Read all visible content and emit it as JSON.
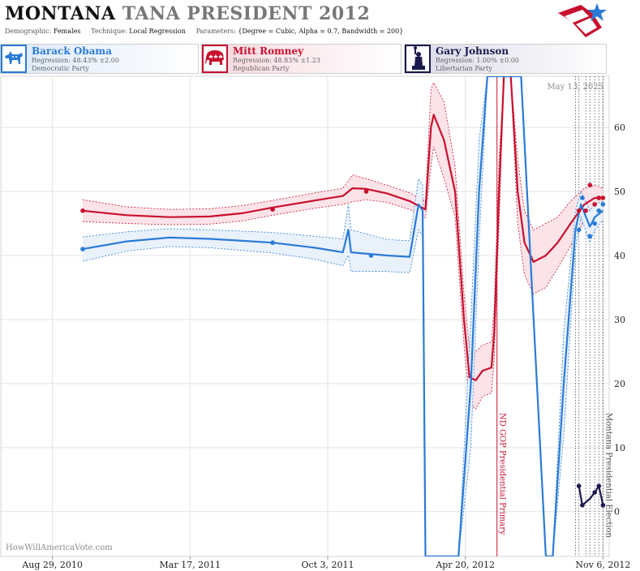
{
  "header": {
    "title_state": "MONTANA",
    "title_rest": "TANA PRESIDENT 2012",
    "demographic_label": "Demographic:",
    "demographic_value": "Females",
    "technique_label": "Technique:",
    "technique_value": "Local Regression",
    "parameters_label": "Parameters:",
    "parameters_value": "{Degree = Cubic, Alpha = 0.7, Bandwidth = 200}"
  },
  "candidates": [
    {
      "name": "Barack Obama",
      "regression": "Regression: 48.43% ±2.00",
      "party": "Democratic Party",
      "color": "#2a7bd6",
      "icon": "donkey-icon"
    },
    {
      "name": "Mitt Romney",
      "regression": "Regression: 48.83% ±1.23",
      "party": "Republican Party",
      "color": "#c8102e",
      "icon": "elephant-icon"
    },
    {
      "name": "Gary Johnson",
      "regression": "Regression: 1.00% ±0.00",
      "party": "Libertarian Party",
      "color": "#1a1a4e",
      "icon": "statue-of-liberty-icon"
    }
  ],
  "chart_data": {
    "type": "line",
    "x_axis": {
      "type": "date",
      "range": [
        "2010-06-15",
        "2012-11-15"
      ],
      "ticks": [
        {
          "date": "2010-08-29",
          "label": "Aug 29, 2010"
        },
        {
          "date": "2011-03-17",
          "label": "Mar 17, 2011"
        },
        {
          "date": "2011-10-03",
          "label": "Oct 3, 2011"
        },
        {
          "date": "2012-04-20",
          "label": "Apr 20, 2012"
        },
        {
          "date": "2012-11-06",
          "label": "Nov 6, 2012"
        }
      ]
    },
    "y_axis": {
      "range": [
        -7,
        68
      ],
      "ticks": [
        0,
        10,
        20,
        30,
        40,
        50,
        60
      ],
      "position": "right"
    },
    "grid": true,
    "date_stamp": "May 13, 2025",
    "watermark": "HowWillAmericaVote.com",
    "event_lines": [
      {
        "date": "2012-06-05",
        "label": "ND GOP Presidential Primary",
        "color": "#c8102e"
      },
      {
        "date": "2012-11-06",
        "label": "Montana Presidential Election",
        "color": "#555555"
      }
    ],
    "poll_lines": [
      "2012-09-27",
      "2012-10-02",
      "2012-10-12",
      "2012-10-18",
      "2012-10-25",
      "2012-10-31"
    ],
    "series": [
      {
        "name": "Mitt Romney",
        "color": "#c8102e",
        "band_fill": "#fbe3e8",
        "line": [
          [
            "2010-10-12",
            47
          ],
          [
            "2010-12-15",
            46.3
          ],
          [
            "2011-02-15",
            46
          ],
          [
            "2011-04-15",
            46.1
          ],
          [
            "2011-06-01",
            46.6
          ],
          [
            "2011-07-15",
            47.5
          ],
          [
            "2011-09-15",
            48.6
          ],
          [
            "2011-10-25",
            49.3
          ],
          [
            "2011-11-08",
            50.5
          ],
          [
            "2011-11-28",
            50.4
          ],
          [
            "2011-12-28",
            49.7
          ],
          [
            "2012-01-30",
            48.5
          ],
          [
            "2012-02-22",
            47.2
          ],
          [
            "2012-03-01",
            60
          ],
          [
            "2012-03-05",
            62
          ],
          [
            "2012-03-20",
            58
          ],
          [
            "2012-04-05",
            50
          ],
          [
            "2012-04-18",
            30
          ],
          [
            "2012-04-26",
            21
          ],
          [
            "2012-05-05",
            20.5
          ],
          [
            "2012-05-15",
            22
          ],
          [
            "2012-05-28",
            22.5
          ],
          [
            "2012-06-01",
            28
          ],
          [
            "2012-06-08",
            50
          ],
          [
            "2012-06-15",
            68
          ],
          [
            "2012-06-25",
            68
          ],
          [
            "2012-07-05",
            50
          ],
          [
            "2012-07-15",
            42
          ],
          [
            "2012-07-28",
            39
          ],
          [
            "2012-08-15",
            40
          ],
          [
            "2012-09-01",
            42
          ],
          [
            "2012-09-20",
            45
          ],
          [
            "2012-10-10",
            48
          ],
          [
            "2012-10-25",
            49
          ],
          [
            "2012-11-06",
            49
          ]
        ],
        "upper": [
          [
            "2010-10-12",
            48.7
          ],
          [
            "2010-12-15",
            47.6
          ],
          [
            "2011-02-15",
            47.2
          ],
          [
            "2011-04-15",
            47.3
          ],
          [
            "2011-06-01",
            47.8
          ],
          [
            "2011-07-15",
            48.6
          ],
          [
            "2011-09-15",
            49.8
          ],
          [
            "2011-10-25",
            50.5
          ],
          [
            "2011-11-08",
            52.6
          ],
          [
            "2011-11-28",
            52
          ],
          [
            "2011-12-28",
            51
          ],
          [
            "2012-01-30",
            49.8
          ],
          [
            "2012-02-22",
            48.5
          ],
          [
            "2012-03-01",
            66
          ],
          [
            "2012-03-05",
            67
          ],
          [
            "2012-03-20",
            64
          ],
          [
            "2012-04-05",
            54
          ],
          [
            "2012-04-18",
            34
          ],
          [
            "2012-04-26",
            25.5
          ],
          [
            "2012-05-05",
            25
          ],
          [
            "2012-05-15",
            26
          ],
          [
            "2012-05-28",
            26.5
          ],
          [
            "2012-06-01",
            32
          ],
          [
            "2012-06-08",
            55
          ],
          [
            "2012-06-15",
            68
          ],
          [
            "2012-06-25",
            68
          ],
          [
            "2012-07-05",
            55
          ],
          [
            "2012-07-15",
            47
          ],
          [
            "2012-07-28",
            44
          ],
          [
            "2012-08-15",
            45
          ],
          [
            "2012-09-01",
            46
          ],
          [
            "2012-09-20",
            48.5
          ],
          [
            "2012-10-10",
            50.5
          ],
          [
            "2012-10-25",
            51
          ],
          [
            "2012-11-06",
            50.5
          ]
        ],
        "lower": [
          [
            "2010-10-12",
            45.3
          ],
          [
            "2010-12-15",
            45
          ],
          [
            "2011-02-15",
            44.8
          ],
          [
            "2011-04-15",
            44.9
          ],
          [
            "2011-06-01",
            45.4
          ],
          [
            "2011-07-15",
            46.3
          ],
          [
            "2011-09-15",
            47.4
          ],
          [
            "2011-10-25",
            48
          ],
          [
            "2011-11-08",
            48.4
          ],
          [
            "2011-11-28",
            48.7
          ],
          [
            "2011-12-28",
            48.3
          ],
          [
            "2012-01-30",
            47.2
          ],
          [
            "2012-02-22",
            45.9
          ],
          [
            "2012-03-01",
            54
          ],
          [
            "2012-03-05",
            57
          ],
          [
            "2012-03-20",
            52
          ],
          [
            "2012-04-05",
            46
          ],
          [
            "2012-04-18",
            26
          ],
          [
            "2012-04-26",
            17
          ],
          [
            "2012-05-05",
            16
          ],
          [
            "2012-05-15",
            18
          ],
          [
            "2012-05-28",
            18.5
          ],
          [
            "2012-06-01",
            24
          ],
          [
            "2012-06-08",
            45
          ],
          [
            "2012-06-15",
            68
          ],
          [
            "2012-06-25",
            68
          ],
          [
            "2012-07-05",
            45
          ],
          [
            "2012-07-15",
            37
          ],
          [
            "2012-07-28",
            34
          ],
          [
            "2012-08-15",
            35
          ],
          [
            "2012-09-01",
            38
          ],
          [
            "2012-09-20",
            41.5
          ],
          [
            "2012-10-10",
            45.5
          ],
          [
            "2012-10-25",
            47
          ],
          [
            "2012-11-06",
            47.5
          ]
        ],
        "points": [
          [
            "2010-10-12",
            47
          ],
          [
            "2011-07-15",
            47.2
          ],
          [
            "2011-11-28",
            50
          ],
          [
            "2012-10-02",
            47
          ],
          [
            "2012-10-12",
            47
          ],
          [
            "2012-10-18",
            51
          ],
          [
            "2012-10-25",
            48
          ],
          [
            "2012-10-31",
            49
          ],
          [
            "2012-11-06",
            49
          ]
        ]
      },
      {
        "name": "Barack Obama",
        "color": "#2a7bd6",
        "band_fill": "#e9f1fb",
        "line": [
          [
            "2010-10-12",
            41
          ],
          [
            "2010-12-15",
            42.2
          ],
          [
            "2011-02-15",
            42.8
          ],
          [
            "2011-04-15",
            42.6
          ],
          [
            "2011-06-01",
            42.3
          ],
          [
            "2011-07-15",
            42
          ],
          [
            "2011-09-15",
            41.2
          ],
          [
            "2011-10-25",
            40.5
          ],
          [
            "2011-11-02",
            44
          ],
          [
            "2011-11-06",
            40.5
          ],
          [
            "2011-12-28",
            40
          ],
          [
            "2012-01-30",
            39.8
          ],
          [
            "2012-02-12",
            48
          ],
          [
            "2012-02-18",
            47
          ],
          [
            "2012-02-20",
            20
          ],
          [
            "2012-02-22",
            -7
          ],
          [
            "2012-03-25",
            -7
          ],
          [
            "2012-04-10",
            -7
          ],
          [
            "2012-04-28",
            20
          ],
          [
            "2012-05-10",
            50
          ],
          [
            "2012-05-22",
            68
          ],
          [
            "2012-07-10",
            68
          ],
          [
            "2012-08-15",
            -7
          ],
          [
            "2012-08-25",
            -7
          ],
          [
            "2012-09-10",
            20
          ],
          [
            "2012-09-27",
            44
          ],
          [
            "2012-10-05",
            48
          ],
          [
            "2012-10-18",
            44.5
          ],
          [
            "2012-10-25",
            46
          ],
          [
            "2012-11-06",
            47
          ]
        ],
        "upper": [
          [
            "2010-10-12",
            42.9
          ],
          [
            "2010-12-15",
            43.7
          ],
          [
            "2011-02-15",
            44.2
          ],
          [
            "2011-04-15",
            44
          ],
          [
            "2011-06-01",
            43.8
          ],
          [
            "2011-07-15",
            43.6
          ],
          [
            "2011-09-15",
            43
          ],
          [
            "2011-10-25",
            42.6
          ],
          [
            "2011-11-02",
            48
          ],
          [
            "2011-11-06",
            44
          ],
          [
            "2011-12-28",
            42.5
          ],
          [
            "2012-01-30",
            42.3
          ],
          [
            "2012-02-12",
            52
          ],
          [
            "2012-02-18",
            51
          ],
          [
            "2012-02-20",
            30
          ],
          [
            "2012-02-22",
            -7
          ],
          [
            "2012-03-25",
            -7
          ],
          [
            "2012-04-10",
            -7
          ],
          [
            "2012-04-28",
            30
          ],
          [
            "2012-05-10",
            58
          ],
          [
            "2012-05-22",
            68
          ],
          [
            "2012-07-10",
            68
          ],
          [
            "2012-08-15",
            -7
          ],
          [
            "2012-08-25",
            -7
          ],
          [
            "2012-09-10",
            28
          ],
          [
            "2012-09-27",
            47
          ],
          [
            "2012-10-05",
            50
          ],
          [
            "2012-10-18",
            47
          ],
          [
            "2012-10-25",
            48
          ],
          [
            "2012-11-06",
            48.5
          ]
        ],
        "lower": [
          [
            "2010-10-12",
            39.1
          ],
          [
            "2010-12-15",
            40.7
          ],
          [
            "2011-02-15",
            41.4
          ],
          [
            "2011-04-15",
            41.2
          ],
          [
            "2011-06-01",
            40.8
          ],
          [
            "2011-07-15",
            40.4
          ],
          [
            "2011-09-15",
            39.4
          ],
          [
            "2011-10-25",
            38.4
          ],
          [
            "2011-11-02",
            40
          ],
          [
            "2011-11-06",
            37.5
          ],
          [
            "2011-12-28",
            37.5
          ],
          [
            "2012-01-30",
            37.3
          ],
          [
            "2012-02-12",
            44
          ],
          [
            "2012-02-18",
            43
          ],
          [
            "2012-02-20",
            10
          ],
          [
            "2012-02-22",
            -7
          ],
          [
            "2012-03-25",
            -7
          ],
          [
            "2012-04-10",
            -7
          ],
          [
            "2012-04-28",
            10
          ],
          [
            "2012-05-10",
            42
          ],
          [
            "2012-05-22",
            68
          ],
          [
            "2012-07-10",
            68
          ],
          [
            "2012-08-15",
            -7
          ],
          [
            "2012-08-25",
            -7
          ],
          [
            "2012-09-10",
            12
          ],
          [
            "2012-09-27",
            41
          ],
          [
            "2012-10-05",
            46
          ],
          [
            "2012-10-18",
            42
          ],
          [
            "2012-10-25",
            44
          ],
          [
            "2012-11-06",
            45.5
          ]
        ],
        "points": [
          [
            "2010-10-12",
            41
          ],
          [
            "2011-07-15",
            42
          ],
          [
            "2011-12-05",
            40
          ],
          [
            "2012-10-02",
            44
          ],
          [
            "2012-10-07",
            49
          ],
          [
            "2012-10-18",
            43
          ],
          [
            "2012-10-25",
            45
          ],
          [
            "2012-10-31",
            47
          ],
          [
            "2012-11-06",
            48
          ]
        ]
      },
      {
        "name": "Gary Johnson",
        "color": "#1a1a4e",
        "line": [
          [
            "2012-10-02",
            4
          ],
          [
            "2012-10-07",
            1
          ],
          [
            "2012-10-18",
            2
          ],
          [
            "2012-10-25",
            3
          ],
          [
            "2012-10-31",
            4
          ],
          [
            "2012-11-06",
            1
          ]
        ],
        "points": [
          [
            "2012-10-02",
            4
          ],
          [
            "2012-10-07",
            1
          ],
          [
            "2012-10-25",
            3
          ],
          [
            "2012-10-31",
            4
          ],
          [
            "2012-11-06",
            1
          ]
        ]
      }
    ]
  }
}
